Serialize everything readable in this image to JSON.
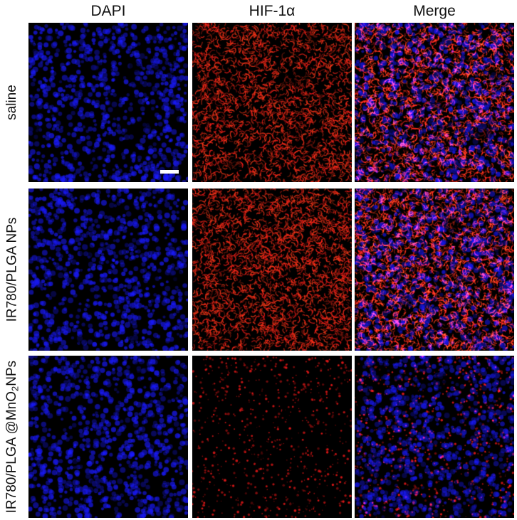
{
  "columns": [
    {
      "label": "DAPI",
      "channel": "dapi"
    },
    {
      "label": "HIF-1α",
      "channel": "hif"
    },
    {
      "label": "Merge",
      "channel": "merge"
    }
  ],
  "rows": [
    {
      "label": "saline",
      "label_sub": "",
      "label_tail": "",
      "hif_level": 0.85
    },
    {
      "label": "IR780/PLGA NPs",
      "label_sub": "",
      "label_tail": "",
      "hif_level": 0.95
    },
    {
      "label": "IR780/PLGA @MnO",
      "label_sub": "2",
      "label_tail": "NPs",
      "hif_level": 0.15
    }
  ],
  "colors": {
    "dapi": "#1a1aff",
    "hif": "#ff1a1a",
    "background": "#000000",
    "scale_bar": "#ffffff"
  }
}
